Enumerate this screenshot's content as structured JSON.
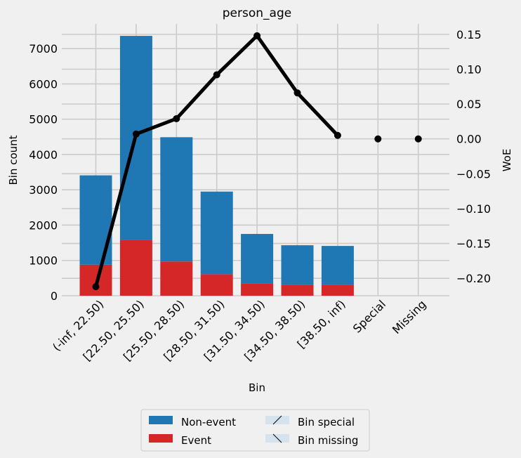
{
  "chart_data": {
    "type": "bar",
    "title": "person_age",
    "xlabel": "Bin",
    "ylabel": "Bin count",
    "y2label": "WoE",
    "categories": [
      "(-inf, 22.50)",
      "[22.50, 25.50)",
      "[25.50, 28.50)",
      "[28.50, 31.50)",
      "[31.50, 34.50)",
      "[34.50, 38.50)",
      "[38.50, inf)",
      "Special",
      "Missing"
    ],
    "series": [
      {
        "name": "Non-event",
        "values": [
          2530,
          5780,
          3520,
          2340,
          1410,
          1130,
          1110,
          0,
          0
        ],
        "color": "#1f77b4"
      },
      {
        "name": "Event",
        "values": [
          880,
          1580,
          970,
          610,
          340,
          300,
          300,
          0,
          0
        ],
        "color": "#d62728"
      }
    ],
    "woe": [
      -0.212,
      0.007,
      0.029,
      0.092,
      0.148,
      0.066,
      0.005,
      0.0,
      0.0
    ],
    "ylim": [
      0,
      7700
    ],
    "y2lim": [
      -0.225,
      0.165
    ],
    "yticks": [
      0,
      1000,
      2000,
      3000,
      4000,
      5000,
      6000,
      7000
    ],
    "y2ticks": [
      "-0.20",
      "-0.15",
      "-0.10",
      "-0.05",
      "0.00",
      "0.05",
      "0.10",
      "0.15"
    ],
    "legend": {
      "position": "bottom-center",
      "entries": [
        "Non-event",
        "Event",
        "Bin special",
        "Bin missing"
      ]
    },
    "grid": true
  }
}
